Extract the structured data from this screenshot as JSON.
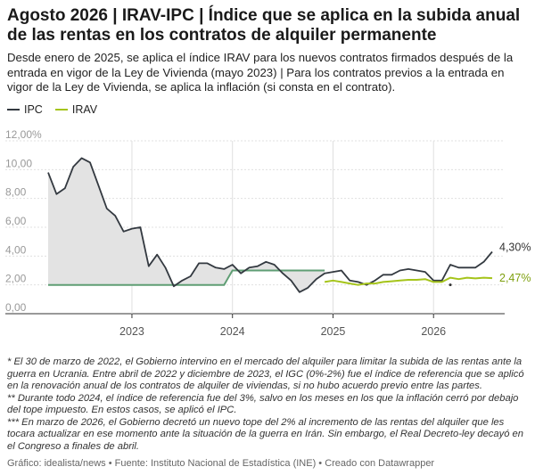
{
  "header": {
    "title": "Agosto 2026 | IRAV-IPC | Índice que se aplica en la subida anual de las rentas en los contratos de alquiler permanente",
    "subtitle": "Desde enero de 2025, se aplica el índice IRAV para los nuevos contratos firmados después de la entrada en vigor de la Ley de Vivienda (mayo 2023) | Para los contratos previos a la entrada en vigor de la Ley de Vivienda, se aplica la inflación (si consta en el contrato)."
  },
  "colors": {
    "ipc": "#333940",
    "irav": "#a5c41a",
    "fill": "#e3e3e3",
    "grid": "#e0e0e0",
    "axis": "#999999"
  },
  "chart_data": {
    "type": "line",
    "ylim": [
      0,
      12
    ],
    "y_ticks": [
      0,
      2,
      4,
      6,
      8,
      10,
      12
    ],
    "y_tick_labels": [
      "0,00",
      "2,00",
      "4,00",
      "6,00",
      "8,00",
      "10,00",
      "12,00%"
    ],
    "x_range": [
      "2022-03",
      "2026-08"
    ],
    "x_tick_labels": [
      "2023",
      "2024",
      "2025",
      "2026"
    ],
    "x_ticks": [
      "2023-01",
      "2024-01",
      "2025-01",
      "2026-01"
    ],
    "series": [
      {
        "name": "IPC",
        "color": "#333940",
        "end_label": "4,30%",
        "points": [
          [
            "2022-03",
            9.8
          ],
          [
            "2022-04",
            8.3
          ],
          [
            "2022-05",
            8.7
          ],
          [
            "2022-06",
            10.2
          ],
          [
            "2022-07",
            10.8
          ],
          [
            "2022-08",
            10.5
          ],
          [
            "2022-09",
            8.9
          ],
          [
            "2022-10",
            7.3
          ],
          [
            "2022-11",
            6.8
          ],
          [
            "2022-12",
            5.7
          ],
          [
            "2023-01",
            5.9
          ],
          [
            "2023-02",
            6.0
          ],
          [
            "2023-03",
            3.3
          ],
          [
            "2023-04",
            4.1
          ],
          [
            "2023-05",
            3.2
          ],
          [
            "2023-06",
            1.9
          ],
          [
            "2023-07",
            2.3
          ],
          [
            "2023-08",
            2.6
          ],
          [
            "2023-09",
            3.5
          ],
          [
            "2023-10",
            3.5
          ],
          [
            "2023-11",
            3.2
          ],
          [
            "2023-12",
            3.1
          ],
          [
            "2024-01",
            3.4
          ],
          [
            "2024-02",
            2.8
          ],
          [
            "2024-03",
            3.2
          ],
          [
            "2024-04",
            3.3
          ],
          [
            "2024-05",
            3.6
          ],
          [
            "2024-06",
            3.4
          ],
          [
            "2024-07",
            2.8
          ],
          [
            "2024-08",
            2.3
          ],
          [
            "2024-09",
            1.5
          ],
          [
            "2024-10",
            1.8
          ],
          [
            "2024-11",
            2.4
          ],
          [
            "2024-12",
            2.8
          ],
          [
            "2025-01",
            2.9
          ],
          [
            "2025-02",
            3.0
          ],
          [
            "2025-03",
            2.3
          ],
          [
            "2025-04",
            2.2
          ],
          [
            "2025-05",
            2.0
          ],
          [
            "2025-06",
            2.3
          ],
          [
            "2025-07",
            2.7
          ],
          [
            "2025-08",
            2.7
          ],
          [
            "2025-09",
            3.0
          ],
          [
            "2025-10",
            3.1
          ],
          [
            "2025-11",
            3.0
          ],
          [
            "2025-12",
            2.9
          ],
          [
            "2026-01",
            2.3
          ],
          [
            "2026-02",
            2.3
          ],
          [
            "2026-03",
            3.4
          ],
          [
            "2026-04",
            3.2
          ],
          [
            "2026-05",
            3.2
          ],
          [
            "2026-06",
            3.2
          ],
          [
            "2026-07",
            3.6
          ],
          [
            "2026-08",
            4.3
          ]
        ]
      },
      {
        "name": "IRAV",
        "color": "#a5c41a",
        "end_label": "2,47%",
        "points": [
          [
            "2024-12",
            2.2
          ],
          [
            "2025-01",
            2.3
          ],
          [
            "2025-02",
            2.2
          ],
          [
            "2025-03",
            2.1
          ],
          [
            "2025-04",
            2.0
          ],
          [
            "2025-05",
            2.1
          ],
          [
            "2025-06",
            2.1
          ],
          [
            "2025-07",
            2.2
          ],
          [
            "2025-08",
            2.25
          ],
          [
            "2025-09",
            2.3
          ],
          [
            "2025-10",
            2.35
          ],
          [
            "2025-11",
            2.35
          ],
          [
            "2025-12",
            2.4
          ],
          [
            "2026-01",
            2.2
          ],
          [
            "2026-02",
            2.2
          ],
          [
            "2026-03",
            2.5
          ],
          [
            "2026-04",
            2.4
          ],
          [
            "2026-05",
            2.5
          ],
          [
            "2026-06",
            2.45
          ],
          [
            "2026-07",
            2.5
          ],
          [
            "2026-08",
            2.47
          ]
        ]
      }
    ],
    "reference_cap": {
      "color": "#5f9e74",
      "points": [
        [
          "2022-03",
          2.0
        ],
        [
          "2023-12",
          2.0
        ],
        [
          "2024-01",
          3.0
        ],
        [
          "2024-12",
          3.0
        ]
      ]
    },
    "marker_point": [
      "2026-03",
      2.0
    ],
    "legend_position": "top-left",
    "grid": true
  },
  "notes": [
    "* El 30 de marzo de 2022, el Gobierno intervino en el mercado del alquiler para limitar la subida de las rentas ante la guerra en Ucrania. Entre abril de 2022 y diciembre de 2023, el IGC (0%-2%) fue el índice de referencia que se aplicó en la renovación anual de los contratos de alquiler de viviendas, si no hubo acuerdo previo entre las partes.",
    "** Durante todo 2024, el índice de referencia fue del 3%, salvo en los meses en los que la inflación cerró por debajo del tope impuesto. En estos casos, se aplicó el IPC.",
    "*** En marzo de 2026, el Gobierno decretó un nuevo tope del 2% al incremento de las rentas del alquiler que les tocara actualizar en ese momento ante la situación de la guerra en Irán. Sin embargo, el Real Decreto-ley decayó en el Congreso a finales de abril."
  ],
  "footer": {
    "source": "Gráfico: idealista/news • Fuente: Instituto Nacional de Estadística (INE) • Creado con Datawrapper"
  }
}
